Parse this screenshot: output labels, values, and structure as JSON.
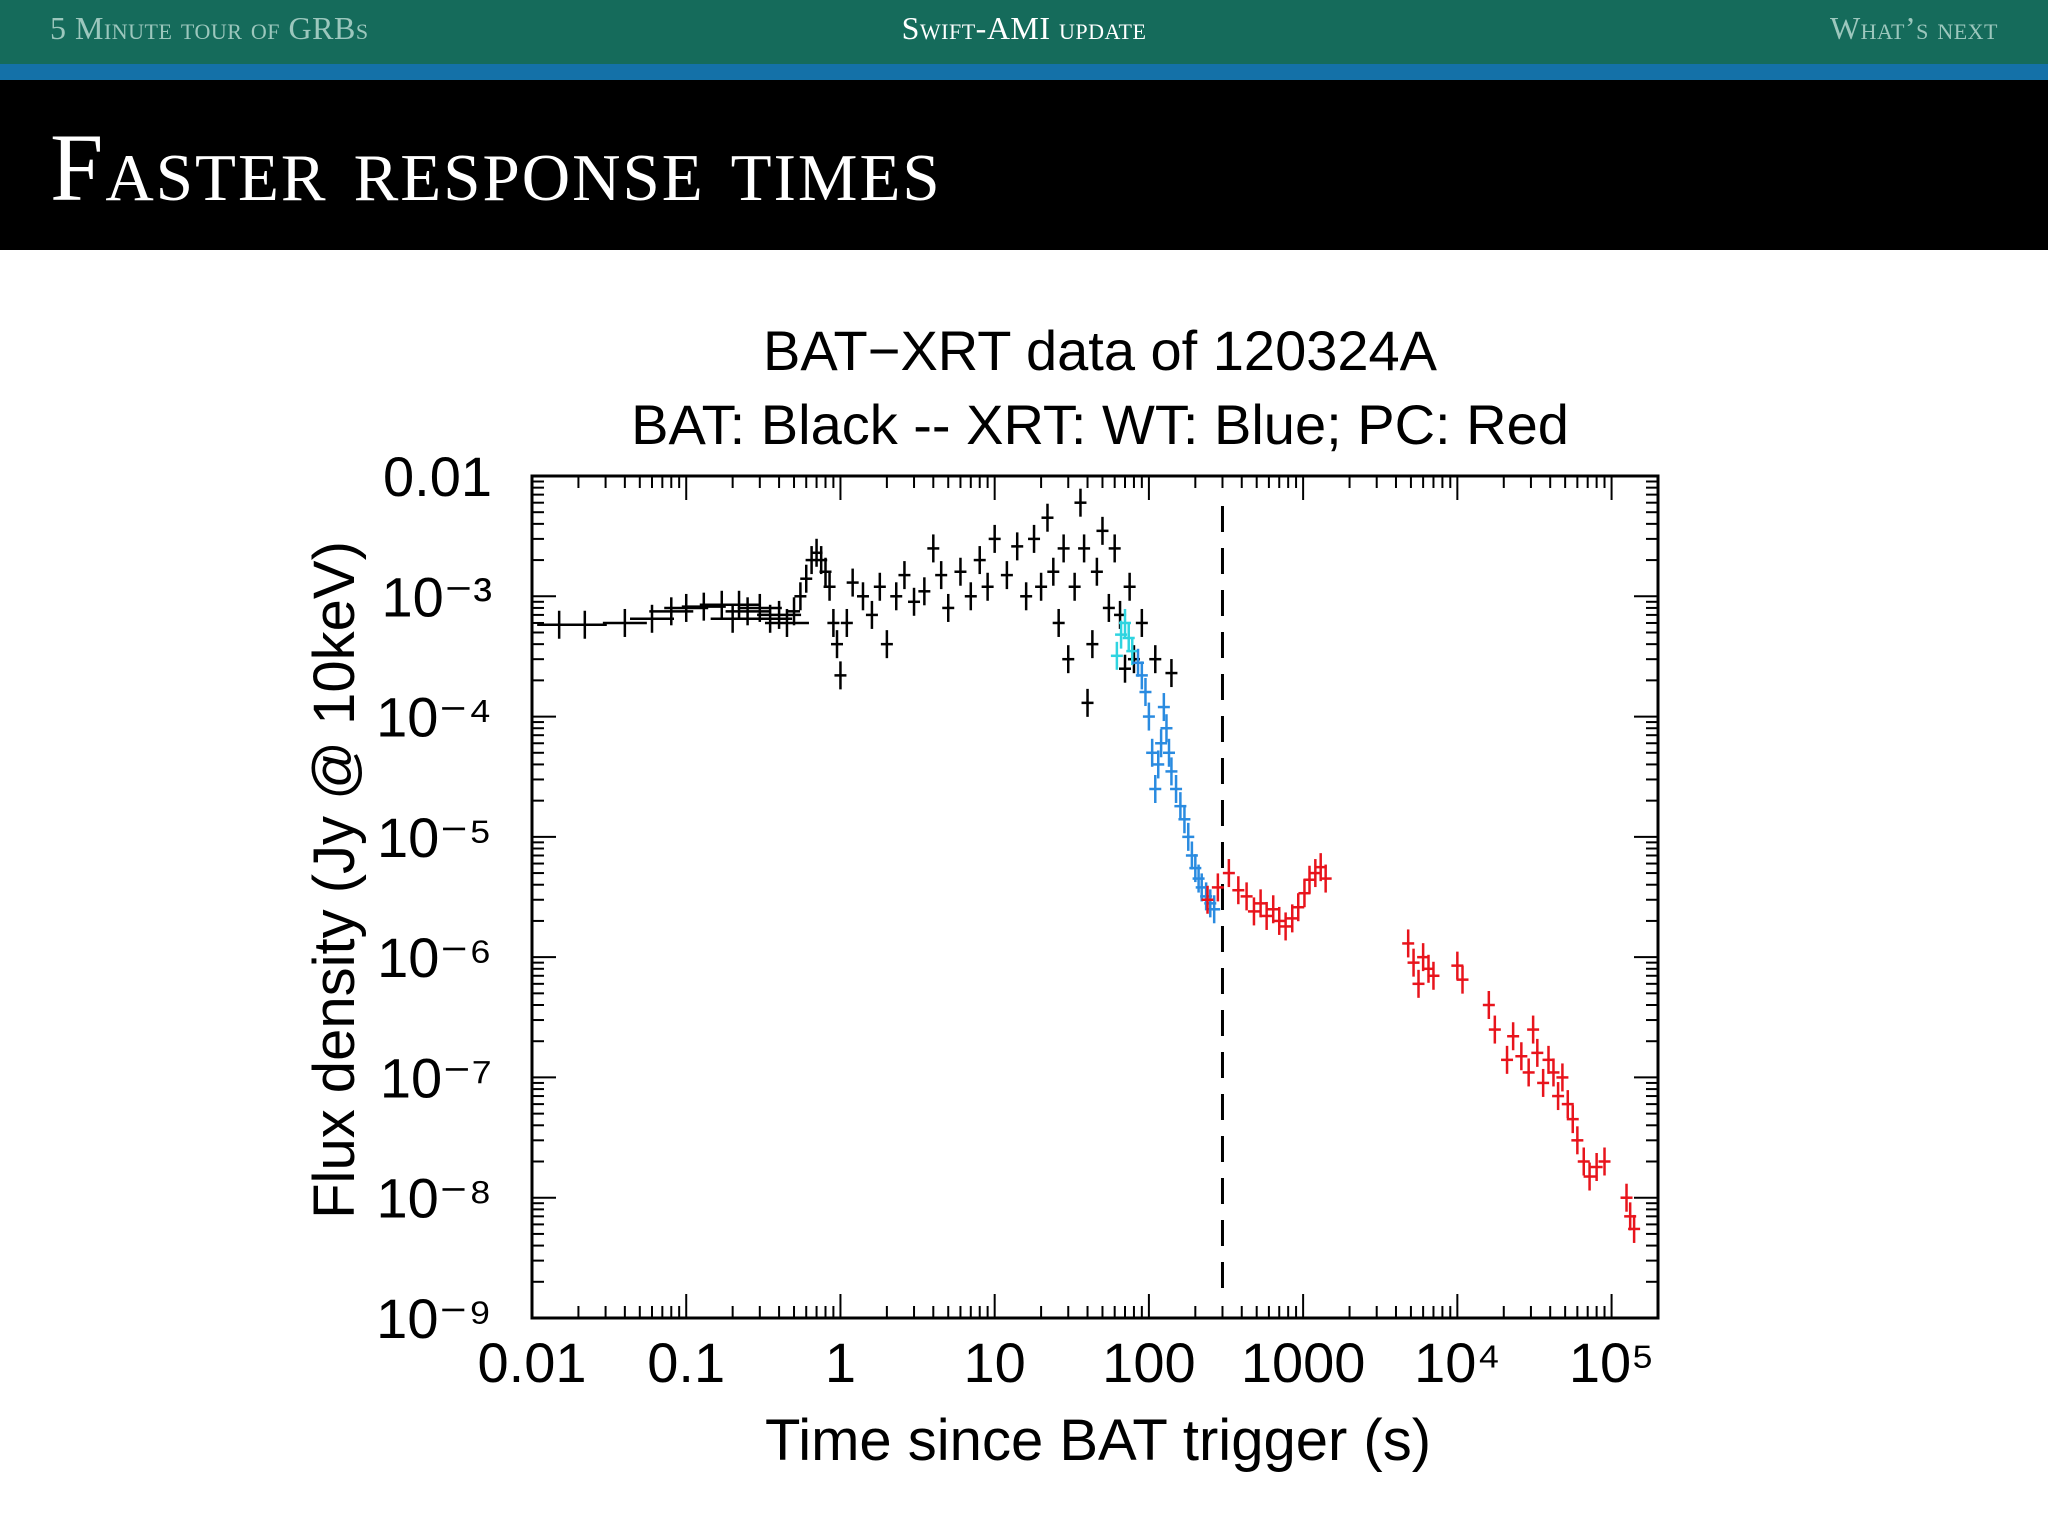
{
  "header": {
    "nav_left": "5 Minute tour of GRBs",
    "nav_center": "Swift-AMI update",
    "nav_right": "What’s next"
  },
  "slide": {
    "title": "Faster response times"
  },
  "colors": {
    "header_bg": "#156b5b",
    "header_stripe": "#1471a8",
    "title_bg": "#000000",
    "bat": "#000000",
    "wt": "#2a8be0",
    "wt_early": "#2fd4e0",
    "pc": "#e8141c"
  },
  "chart_data": {
    "type": "scatter",
    "title": "BAT−XRT data of 120324A",
    "subtitle": "BAT: Black -- XRT: WT: Blue; PC: Red",
    "xlabel": "Time since BAT trigger (s)",
    "ylabel": "Flux density (Jy @ 10keV)",
    "x_scale": "log",
    "y_scale": "log",
    "xlim": [
      0.01,
      200000
    ],
    "ylim": [
      1e-09,
      0.01
    ],
    "x_ticks": [
      "0.01",
      "0.1",
      "1",
      "10",
      "100",
      "1000",
      "10⁴",
      "10⁵"
    ],
    "y_ticks": [
      "0.01",
      "10⁻³",
      "10⁻⁴",
      "10⁻⁵",
      "10⁻⁶",
      "10⁻⁷",
      "10⁻⁸",
      "10⁻⁹"
    ],
    "vline": {
      "x": 300,
      "style": "dashed"
    },
    "grid": false,
    "series": [
      {
        "color": "#000000",
        "points": [
          [
            0.015,
            0.00058
          ],
          [
            0.022,
            0.00058
          ],
          [
            0.04,
            0.0006
          ],
          [
            0.06,
            0.00065
          ],
          [
            0.08,
            0.00075
          ],
          [
            0.1,
            0.0008
          ],
          [
            0.13,
            0.00082
          ],
          [
            0.17,
            0.00085
          ],
          [
            0.2,
            0.00065
          ],
          [
            0.22,
            0.00085
          ],
          [
            0.25,
            0.00075
          ],
          [
            0.3,
            0.0008
          ],
          [
            0.35,
            0.00065
          ],
          [
            0.4,
            0.0007
          ],
          [
            0.45,
            0.0006
          ],
          [
            0.5,
            0.00075
          ],
          [
            0.55,
            0.001
          ],
          [
            0.6,
            0.0014
          ],
          [
            0.65,
            0.002
          ],
          [
            0.7,
            0.0023
          ],
          [
            0.75,
            0.002
          ],
          [
            0.8,
            0.0016
          ],
          [
            0.85,
            0.0012
          ],
          [
            0.9,
            0.0006
          ],
          [
            0.95,
            0.0004
          ],
          [
            1.0,
            0.00022
          ],
          [
            1.1,
            0.0006
          ],
          [
            1.2,
            0.0013
          ],
          [
            1.4,
            0.001
          ],
          [
            1.6,
            0.0007
          ],
          [
            1.8,
            0.0012
          ],
          [
            2.0,
            0.0004
          ],
          [
            2.3,
            0.001
          ],
          [
            2.6,
            0.0015
          ],
          [
            3.0,
            0.0009
          ],
          [
            3.5,
            0.0011
          ],
          [
            4.0,
            0.0025
          ],
          [
            4.5,
            0.0015
          ],
          [
            5.0,
            0.0008
          ],
          [
            6.0,
            0.0016
          ],
          [
            7.0,
            0.001
          ],
          [
            8.0,
            0.002
          ],
          [
            9.0,
            0.0012
          ],
          [
            10,
            0.003
          ],
          [
            12,
            0.0015
          ],
          [
            14,
            0.0026
          ],
          [
            16,
            0.001
          ],
          [
            18,
            0.003
          ],
          [
            20,
            0.0012
          ],
          [
            22,
            0.0045
          ],
          [
            24,
            0.0016
          ],
          [
            26,
            0.0006
          ],
          [
            28,
            0.0025
          ],
          [
            30,
            0.0003
          ],
          [
            33,
            0.0012
          ],
          [
            36,
            0.006
          ],
          [
            38,
            0.0025
          ],
          [
            40,
            0.00013
          ],
          [
            43,
            0.0004
          ],
          [
            46,
            0.0016
          ],
          [
            50,
            0.0035
          ],
          [
            55,
            0.0008
          ],
          [
            60,
            0.0025
          ],
          [
            65,
            0.0007
          ],
          [
            70,
            0.00025
          ],
          [
            75,
            0.0012
          ],
          [
            80,
            0.0003
          ],
          [
            90,
            0.0006
          ],
          [
            110,
            0.0003
          ],
          [
            140,
            0.00023
          ]
        ]
      },
      {
        "color": "#2fd4e0",
        "points": [
          [
            62,
            0.00032
          ],
          [
            66,
            0.00048
          ],
          [
            70,
            0.0006
          ],
          [
            74,
            0.00045
          ],
          [
            78,
            0.00035
          ]
        ]
      },
      {
        "color": "#2a8be0",
        "points": [
          [
            85,
            0.00028
          ],
          [
            90,
            0.00022
          ],
          [
            95,
            0.00016
          ],
          [
            100,
            0.0001
          ],
          [
            105,
            5e-05
          ],
          [
            110,
            2.5e-05
          ],
          [
            115,
            4e-05
          ],
          [
            120,
            6e-05
          ],
          [
            125,
            0.00012
          ],
          [
            130,
            8e-05
          ],
          [
            135,
            5e-05
          ],
          [
            140,
            3.5e-05
          ],
          [
            150,
            2.5e-05
          ],
          [
            160,
            1.8e-05
          ],
          [
            170,
            1.4e-05
          ],
          [
            180,
            1e-05
          ],
          [
            190,
            7e-06
          ],
          [
            200,
            5.5e-06
          ],
          [
            210,
            4.5e-06
          ],
          [
            220,
            3.8e-06
          ],
          [
            235,
            3.2e-06
          ],
          [
            250,
            2.8e-06
          ],
          [
            265,
            2.5e-06
          ]
        ]
      },
      {
        "color": "#e8141c",
        "points": [
          [
            240,
            3e-06
          ],
          [
            280,
            3.8e-06
          ],
          [
            330,
            5e-06
          ],
          [
            380,
            3.6e-06
          ],
          [
            430,
            3.2e-06
          ],
          [
            480,
            2.4e-06
          ],
          [
            530,
            2.8e-06
          ],
          [
            580,
            2.2e-06
          ],
          [
            640,
            2.5e-06
          ],
          [
            700,
            2e-06
          ],
          [
            770,
            1.8e-06
          ],
          [
            850,
            2.1e-06
          ],
          [
            930,
            2.6e-06
          ],
          [
            1020,
            3.4e-06
          ],
          [
            1100,
            4.4e-06
          ],
          [
            1200,
            5e-06
          ],
          [
            1300,
            5.6e-06
          ],
          [
            1400,
            4.5e-06
          ],
          [
            4800,
            1.3e-06
          ],
          [
            5200,
            9e-07
          ],
          [
            5600,
            6e-07
          ],
          [
            6000,
            1e-06
          ],
          [
            6500,
            8e-07
          ],
          [
            7000,
            7e-07
          ],
          [
            10000,
            8.5e-07
          ],
          [
            10800,
            6.5e-07
          ],
          [
            16000,
            4e-07
          ],
          [
            17500,
            2.5e-07
          ],
          [
            21000,
            1.4e-07
          ],
          [
            23000,
            2.2e-07
          ],
          [
            26000,
            1.5e-07
          ],
          [
            29000,
            1.1e-07
          ],
          [
            31000,
            2.5e-07
          ],
          [
            33000,
            1.6e-07
          ],
          [
            36000,
            9e-08
          ],
          [
            39000,
            1.4e-07
          ],
          [
            42000,
            1.1e-07
          ],
          [
            45000,
            7e-08
          ],
          [
            48000,
            1e-07
          ],
          [
            52000,
            6e-08
          ],
          [
            56000,
            4.5e-08
          ],
          [
            60000,
            3e-08
          ],
          [
            66000,
            2e-08
          ],
          [
            72000,
            1.5e-08
          ],
          [
            80000,
            1.8e-08
          ],
          [
            90000,
            2e-08
          ],
          [
            125000,
            1e-08
          ],
          [
            132000,
            7e-09
          ],
          [
            140000,
            5.5e-09
          ]
        ]
      }
    ]
  }
}
